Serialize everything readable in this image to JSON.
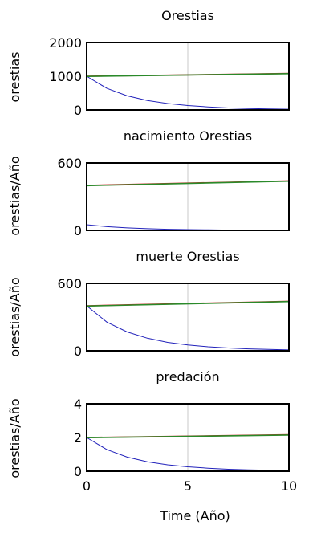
{
  "chart_data": [
    {
      "type": "line",
      "title": "Orestias",
      "xlabel": "",
      "ylabel": "orestias",
      "xlim": [
        0,
        10
      ],
      "ylim": [
        0,
        2000
      ],
      "yticks": [
        "2000",
        "1000",
        "0"
      ],
      "xticks": [],
      "series": [
        {
          "color": "#2222bb",
          "x": [
            0,
            1,
            2,
            3,
            4,
            5,
            6,
            7,
            8,
            9,
            10
          ],
          "y": [
            1000,
            640,
            420,
            280,
            190,
            130,
            90,
            60,
            42,
            30,
            22
          ]
        },
        {
          "color": "#cc2222",
          "x": [
            0,
            10
          ],
          "y": [
            1000,
            1080
          ]
        },
        {
          "color": "#2a8a2a",
          "x": [
            0,
            10
          ],
          "y": [
            995,
            1075
          ]
        }
      ]
    },
    {
      "type": "line",
      "title": "nacimiento Orestias",
      "xlabel": "",
      "ylabel": "orestias/Año",
      "xlim": [
        0,
        10
      ],
      "ylim": [
        0,
        600
      ],
      "yticks": [
        "600",
        "0"
      ],
      "xticks": [],
      "series": [
        {
          "color": "#2222bb",
          "x": [
            0,
            1,
            2,
            3,
            4,
            5,
            6,
            7,
            8,
            9,
            10
          ],
          "y": [
            50,
            33,
            22,
            15,
            10,
            7,
            5,
            3,
            2,
            1.5,
            1
          ]
        },
        {
          "color": "#cc2222",
          "x": [
            0,
            10
          ],
          "y": [
            400,
            440
          ]
        },
        {
          "color": "#2a8a2a",
          "x": [
            0,
            10
          ],
          "y": [
            398,
            438
          ]
        }
      ]
    },
    {
      "type": "line",
      "title": "muerte Orestias",
      "xlabel": "",
      "ylabel": "orestias/Año",
      "xlim": [
        0,
        10
      ],
      "ylim": [
        0,
        600
      ],
      "yticks": [
        "600",
        "0"
      ],
      "xticks": [],
      "series": [
        {
          "color": "#2222bb",
          "x": [
            0,
            1,
            2,
            3,
            4,
            5,
            6,
            7,
            8,
            9,
            10
          ],
          "y": [
            400,
            255,
            168,
            112,
            75,
            52,
            36,
            25,
            17,
            12,
            8
          ]
        },
        {
          "color": "#cc2222",
          "x": [
            0,
            10
          ],
          "y": [
            400,
            440
          ]
        },
        {
          "color": "#2a8a2a",
          "x": [
            0,
            10
          ],
          "y": [
            398,
            438
          ]
        }
      ]
    },
    {
      "type": "line",
      "title": "predación",
      "xlabel": "Time (Año)",
      "ylabel": "orestias/Año",
      "xlim": [
        0,
        10
      ],
      "ylim": [
        0,
        4
      ],
      "yticks": [
        "4",
        "2",
        "0"
      ],
      "xticks": [
        "0",
        "5",
        "10"
      ],
      "series": [
        {
          "color": "#2222bb",
          "x": [
            0,
            1,
            2,
            3,
            4,
            5,
            6,
            7,
            8,
            9,
            10
          ],
          "y": [
            2.0,
            1.28,
            0.84,
            0.56,
            0.38,
            0.26,
            0.18,
            0.12,
            0.08,
            0.06,
            0.04
          ]
        },
        {
          "color": "#cc2222",
          "x": [
            0,
            10
          ],
          "y": [
            2.0,
            2.16
          ]
        },
        {
          "color": "#2a8a2a",
          "x": [
            0,
            10
          ],
          "y": [
            1.99,
            2.15
          ]
        }
      ]
    }
  ]
}
